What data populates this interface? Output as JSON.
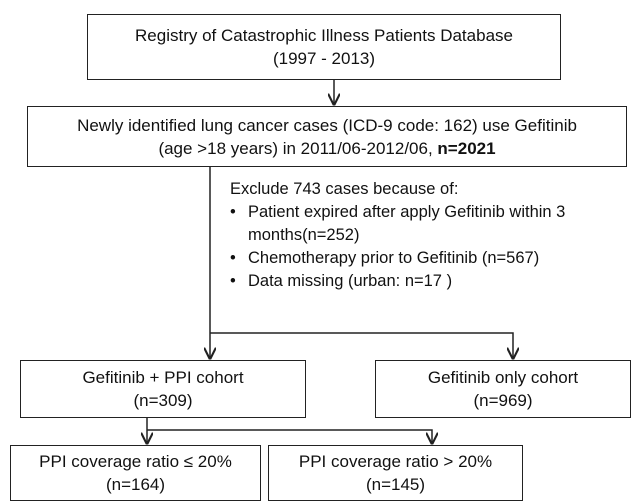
{
  "header": {
    "lines": [
      "Registry of Catastrophic Illness Patients Database",
      "(1997 - 2013)"
    ]
  },
  "selection": {
    "lines": [
      "Newly identified lung cancer cases (ICD-9 code: 162) use Gefitinib",
      "(age >18 years) in 2011/06-2012/06,"
    ],
    "count": "n=2021"
  },
  "exclusion": {
    "title": "Exclude 743 cases because of:",
    "items": [
      [
        "Patient expired after apply Gefitinib within 3",
        "months(n=252)"
      ],
      [
        "Chemotherapy prior to Gefitinib (n=567)"
      ],
      [
        "Data missing (urban: n=17 )"
      ]
    ]
  },
  "cohorts": [
    {
      "label": "Gefitinib + PPI cohort",
      "count": "(n=309)"
    },
    {
      "label": "Gefitinib only cohort",
      "count": "(n=969)"
    }
  ],
  "subgroups": [
    {
      "label": "PPI coverage ratio ≤ 20%",
      "count": "(n=164)"
    },
    {
      "label": "PPI coverage ratio > 20%",
      "count": "(n=145)"
    }
  ]
}
